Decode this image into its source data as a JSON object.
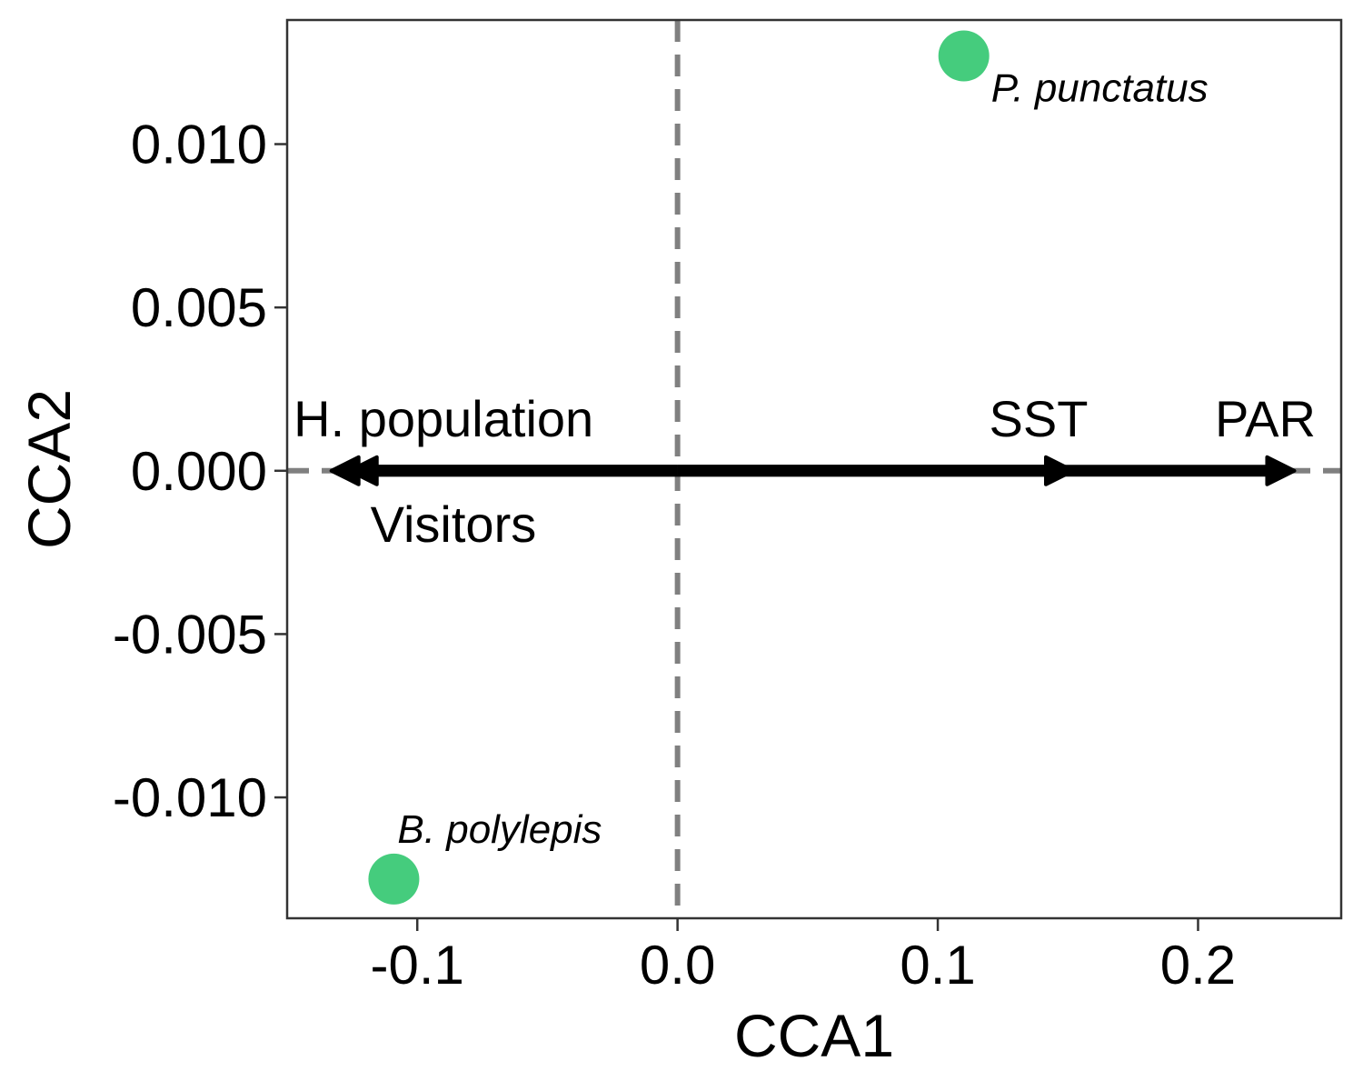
{
  "chart_data": {
    "type": "scatter",
    "title": "",
    "xlabel": "CCA1",
    "ylabel": "CCA2",
    "xlim": [
      -0.15,
      0.255
    ],
    "ylim": [
      -0.0137,
      0.0138
    ],
    "x_ticks": [
      -0.1,
      0.0,
      0.1,
      0.2
    ],
    "x_tick_labels": [
      "-0.1",
      "0.0",
      "0.1",
      "0.2"
    ],
    "y_ticks": [
      0.01,
      0.005,
      0.0,
      -0.005,
      -0.01
    ],
    "y_tick_labels": [
      "0.010",
      "0.005",
      "0.000",
      "-0.005",
      "-0.010"
    ],
    "grid": false,
    "legend": "none",
    "reference_lines": [
      {
        "orientation": "vertical",
        "value": 0,
        "style": "dashed",
        "color": "#808080"
      },
      {
        "orientation": "horizontal",
        "value": 0,
        "style": "dashed",
        "color": "#808080"
      }
    ],
    "point_color": "#45CC7D",
    "points": [
      {
        "label": "P. punctatus",
        "x": 0.11,
        "y": 0.0127
      },
      {
        "label": "B. polylepis",
        "x": -0.109,
        "y": -0.0125
      }
    ],
    "arrow_color": "#000000",
    "arrows": [
      {
        "label": "H. population",
        "x": -0.133,
        "y": 0.0
      },
      {
        "label": "Visitors",
        "x": -0.126,
        "y": 0.0
      },
      {
        "label": "SST",
        "x": 0.152,
        "y": 0.0
      },
      {
        "label": "PAR",
        "x": 0.237,
        "y": 0.0
      }
    ]
  }
}
